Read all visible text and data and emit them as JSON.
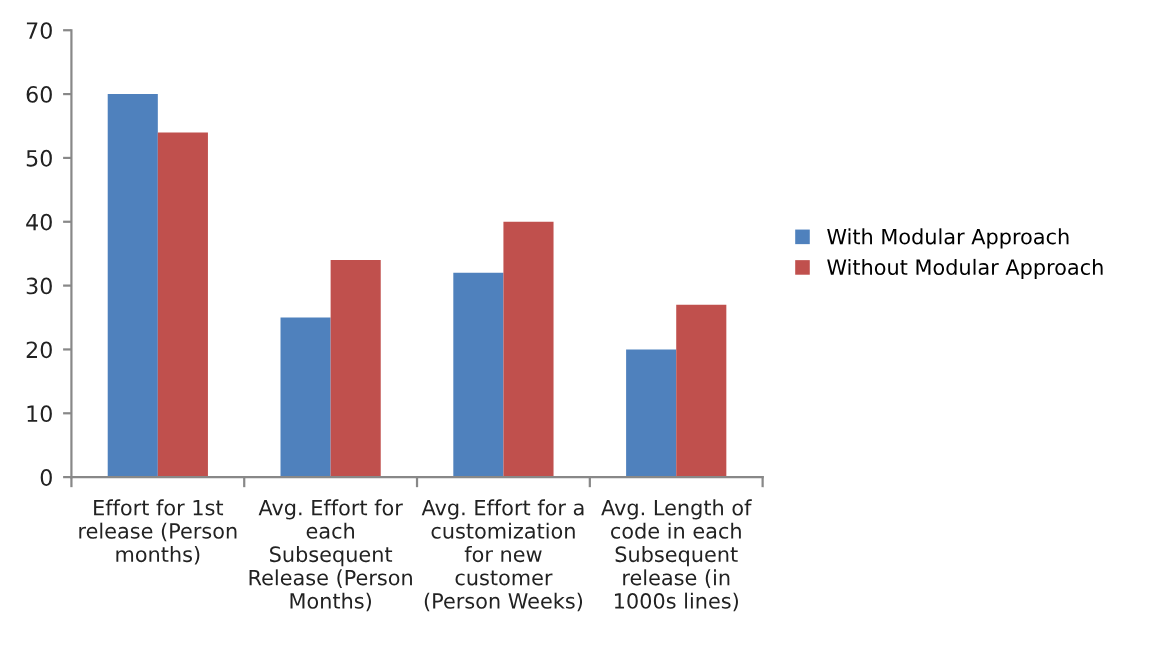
{
  "chart_data": {
    "type": "bar",
    "categories": [
      "Effort for 1st\nrelease (Person\nmonths)",
      "Avg. Effort for\neach\nSubsequent\nRelease (Person\nMonths)",
      "Avg. Effort for a\ncustomization\nfor new\ncustomer\n(Person Weeks)",
      "Avg. Length of\ncode in each\nSubsequent\nrelease (in\n1000s lines)"
    ],
    "series": [
      {
        "name": "With Modular Approach",
        "color": "#4f81bd",
        "values": [
          60,
          25,
          32,
          20
        ]
      },
      {
        "name": "Without Modular Approach",
        "color": "#c0504d",
        "values": [
          54,
          34,
          40,
          27
        ]
      }
    ],
    "ylim": [
      0,
      70
    ],
    "yticks": [
      0,
      10,
      20,
      30,
      40,
      50,
      60,
      70
    ],
    "grid": false,
    "legend": "right"
  }
}
